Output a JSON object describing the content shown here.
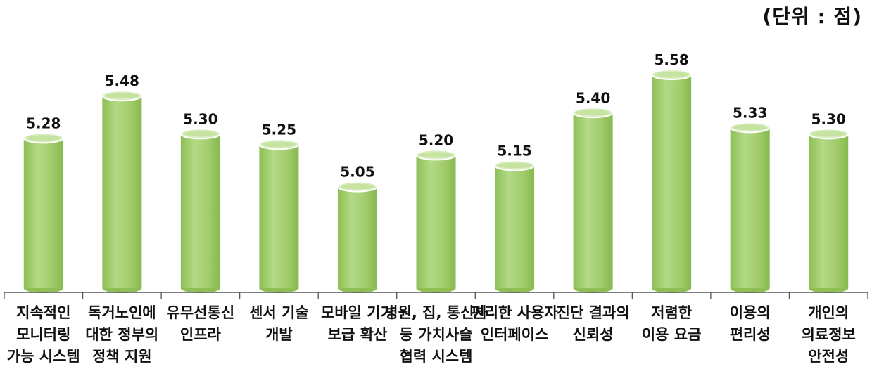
{
  "unit_label": "(단위 : 점)",
  "chart_data": {
    "type": "bar",
    "title": "",
    "xlabel": "",
    "ylabel": "",
    "ylim": [
      4.55,
      5.7
    ],
    "bar_color": "#a5cf6c",
    "bar_top_color": "#d9eec0",
    "categories": [
      [
        "지속적인",
        "모니터링",
        "가능 시스템"
      ],
      [
        "독거노인에",
        "대한 정부의",
        "정책 지원"
      ],
      [
        "유무선통신",
        "인프라"
      ],
      [
        "센서 기술",
        "개발"
      ],
      [
        "모바일 기기",
        "보급 확산"
      ],
      [
        "병원, 집, 통신사",
        "등 가치사슬",
        "협력 시스템"
      ],
      [
        "편리한 사용자",
        "인터페이스"
      ],
      [
        "진단 결과의",
        "신뢰성"
      ],
      [
        "저렴한",
        "이용 요금"
      ],
      [
        "이용의",
        "편리성"
      ],
      [
        "개인의",
        "의료정보",
        "안전성"
      ]
    ],
    "values": [
      5.28,
      5.48,
      5.3,
      5.25,
      5.05,
      5.2,
      5.15,
      5.4,
      5.58,
      5.33,
      5.3
    ],
    "value_labels": [
      "5.28",
      "5.48",
      "5.30",
      "5.25",
      "5.05",
      "5.20",
      "5.15",
      "5.40",
      "5.58",
      "5.33",
      "5.30"
    ]
  }
}
